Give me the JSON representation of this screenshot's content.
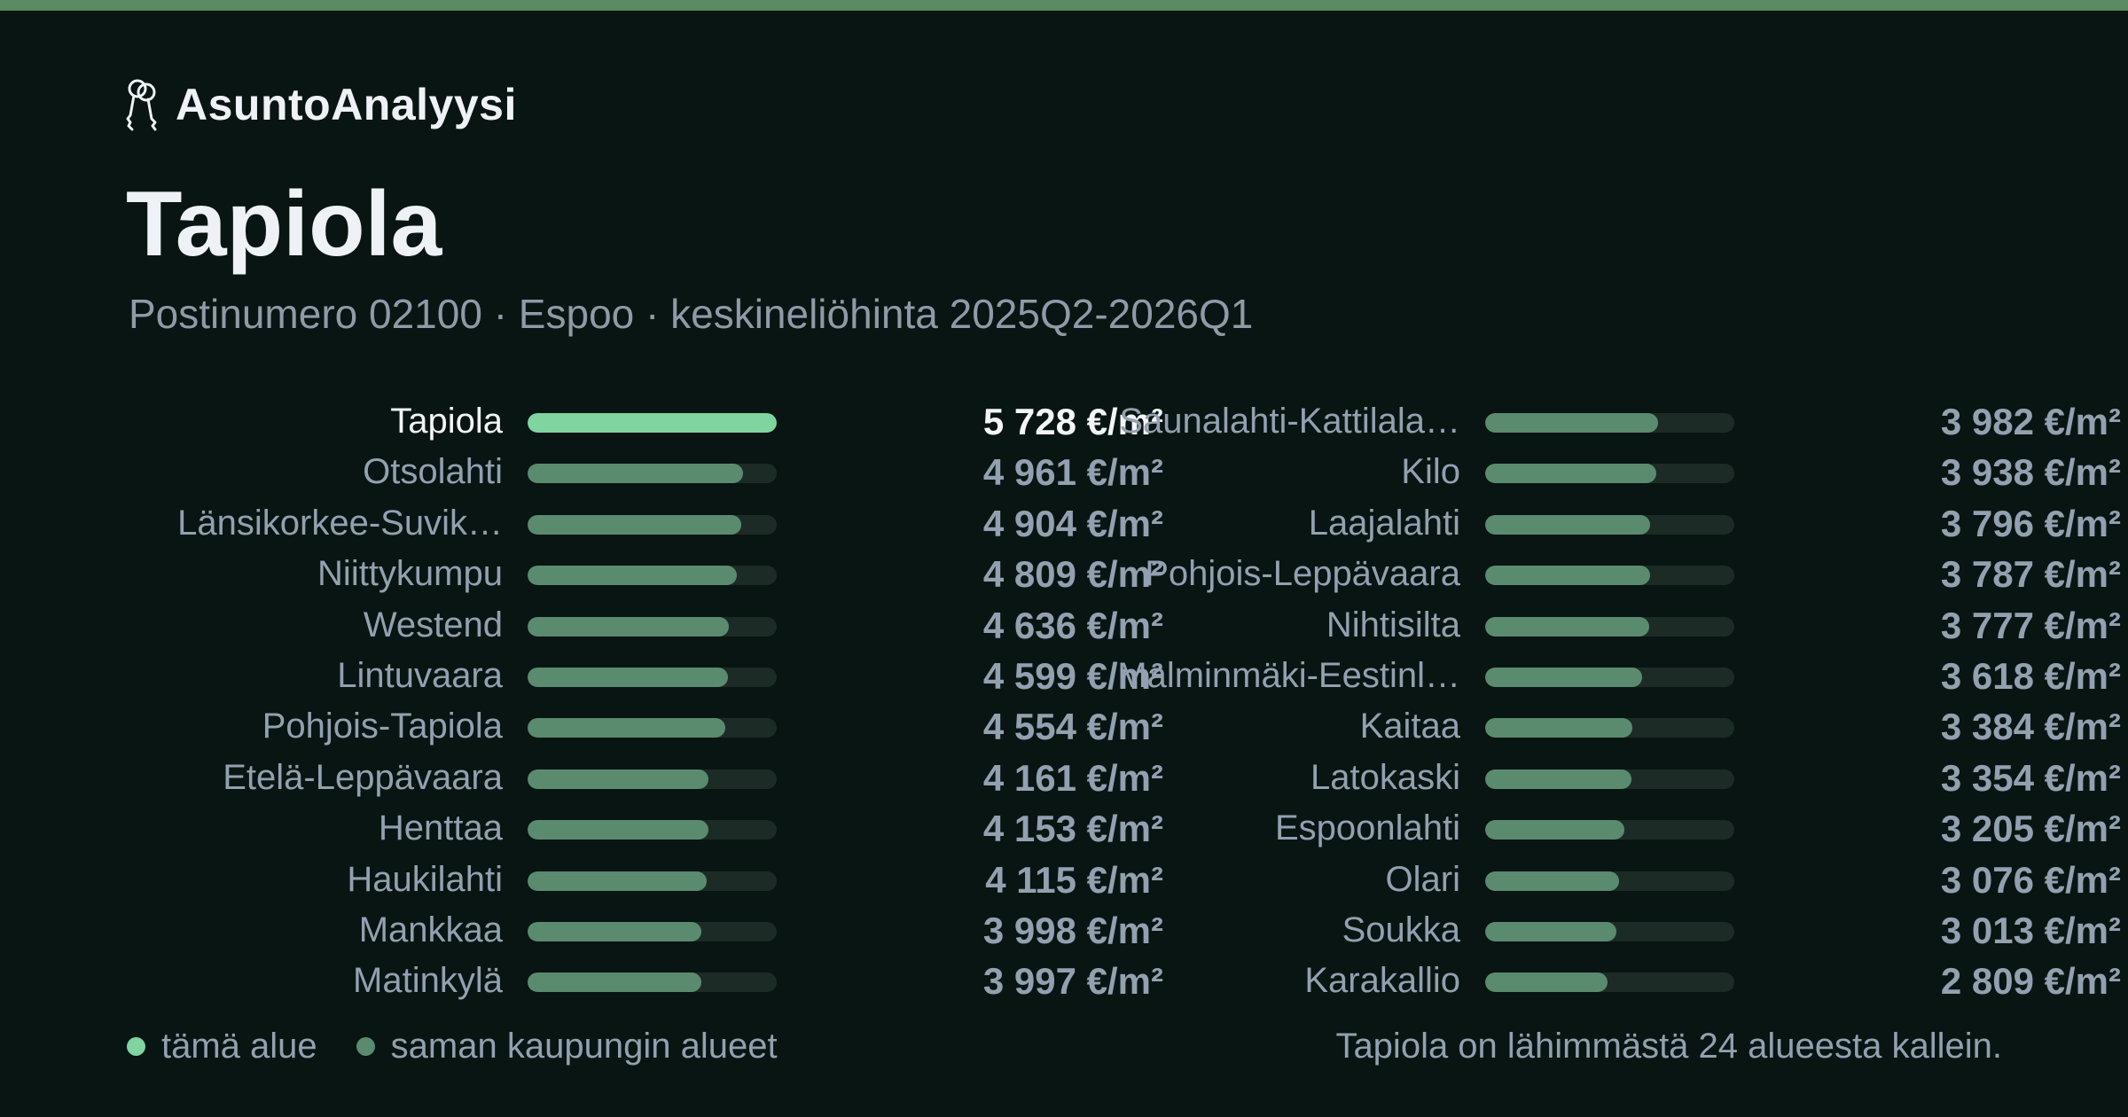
{
  "brand": {
    "name": "AsuntoAnalyysi",
    "icon": "keys-icon"
  },
  "title": "Tapiola",
  "subtitle": "Postinumero 02100 · Espoo · keskineliöhinta 2025Q2-2026Q1",
  "legend": {
    "this_area": "tämä alue",
    "city_areas": "saman kaupungin alueet"
  },
  "footnote": "Tapiola on lähimmästä 24 alueesta kallein.",
  "colors": {
    "highlight_bar": "#7fd4a0",
    "city_bar": "#5a8b6f",
    "track": "#1d2b27",
    "background": "#091512",
    "top_accent": "#5a8b62"
  },
  "chart_data": {
    "type": "bar",
    "orientation": "horizontal",
    "unit": "€/m²",
    "highlight": "Tapiola",
    "xlim": [
      0,
      5728
    ],
    "columns": [
      [
        {
          "name": "Tapiola",
          "value": 5728,
          "label": "5 728 €/m²"
        },
        {
          "name": "Otsolahti",
          "value": 4961,
          "label": "4 961 €/m²"
        },
        {
          "name": "Länsikorkee-Suvik…",
          "value": 4904,
          "label": "4 904 €/m²"
        },
        {
          "name": "Niittykumpu",
          "value": 4809,
          "label": "4 809 €/m²"
        },
        {
          "name": "Westend",
          "value": 4636,
          "label": "4 636 €/m²"
        },
        {
          "name": "Lintuvaara",
          "value": 4599,
          "label": "4 599 €/m²"
        },
        {
          "name": "Pohjois-Tapiola",
          "value": 4554,
          "label": "4 554 €/m²"
        },
        {
          "name": "Etelä-Leppävaara",
          "value": 4161,
          "label": "4 161 €/m²"
        },
        {
          "name": "Henttaa",
          "value": 4153,
          "label": "4 153 €/m²"
        },
        {
          "name": "Haukilahti",
          "value": 4115,
          "label": "4 115 €/m²"
        },
        {
          "name": "Mankkaa",
          "value": 3998,
          "label": "3 998 €/m²"
        },
        {
          "name": "Matinkylä",
          "value": 3997,
          "label": "3 997 €/m²"
        }
      ],
      [
        {
          "name": "Saunalahti-Kattilala…",
          "value": 3982,
          "label": "3 982 €/m²"
        },
        {
          "name": "Kilo",
          "value": 3938,
          "label": "3 938 €/m²"
        },
        {
          "name": "Laajalahti",
          "value": 3796,
          "label": "3 796 €/m²"
        },
        {
          "name": "Pohjois-Leppävaara",
          "value": 3787,
          "label": "3 787 €/m²"
        },
        {
          "name": "Nihtisilta",
          "value": 3777,
          "label": "3 777 €/m²"
        },
        {
          "name": "Malminmäki-Eestinl…",
          "value": 3618,
          "label": "3 618 €/m²"
        },
        {
          "name": "Kaitaa",
          "value": 3384,
          "label": "3 384 €/m²"
        },
        {
          "name": "Latokaski",
          "value": 3354,
          "label": "3 354 €/m²"
        },
        {
          "name": "Espoonlahti",
          "value": 3205,
          "label": "3 205 €/m²"
        },
        {
          "name": "Olari",
          "value": 3076,
          "label": "3 076 €/m²"
        },
        {
          "name": "Soukka",
          "value": 3013,
          "label": "3 013 €/m²"
        },
        {
          "name": "Karakallio",
          "value": 2809,
          "label": "2 809 €/m²"
        }
      ]
    ]
  }
}
